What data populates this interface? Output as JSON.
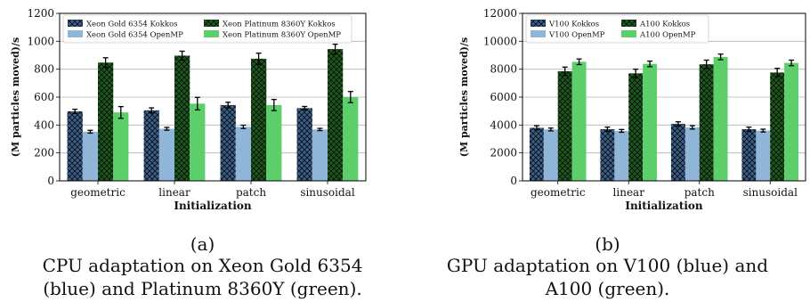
{
  "chart_data": [
    {
      "type": "bar",
      "categories": [
        "geometric",
        "linear",
        "patch",
        "sinusoidal"
      ],
      "xlabel": "Initialization",
      "ylabel": "(M particles moved)/s",
      "ylim": [
        0,
        1200
      ],
      "yticks": [
        0,
        200,
        400,
        600,
        800,
        1000,
        1200
      ],
      "grid": "horizontal",
      "legend_position": "top",
      "series": [
        {
          "name": "Xeon Gold 6354 Kokkos",
          "values": [
            498,
            505,
            543,
            521
          ],
          "errors": [
            15,
            18,
            20,
            12
          ],
          "color": "#3a5f8a",
          "hatch": true
        },
        {
          "name": "Xeon Gold 6354 OpenMP",
          "values": [
            352,
            373,
            387,
            368
          ],
          "errors": [
            10,
            10,
            12,
            8
          ],
          "color": "#8fb6d8",
          "hatch": false
        },
        {
          "name": "Xeon Platinum 8360Y Kokkos",
          "values": [
            847,
            897,
            875,
            944
          ],
          "errors": [
            35,
            32,
            40,
            35
          ],
          "color": "#1c5a1c",
          "hatch": true
        },
        {
          "name": "Xeon Platinum 8360Y OpenMP",
          "values": [
            490,
            553,
            543,
            600
          ],
          "errors": [
            42,
            45,
            40,
            40
          ],
          "color": "#5ccf6a",
          "hatch": false
        }
      ],
      "tag": "(a)",
      "caption_lines": [
        "CPU adaptation on Xeon Gold 6354",
        "(blue) and Platinum 8360Y (green)."
      ]
    },
    {
      "type": "bar",
      "categories": [
        "geometric",
        "linear",
        "patch",
        "sinusoidal"
      ],
      "xlabel": "Initialization",
      "ylabel": "(M particles moved)/s",
      "ylim": [
        0,
        12000
      ],
      "yticks": [
        0,
        2000,
        4000,
        6000,
        8000,
        10000,
        12000
      ],
      "grid": "horizontal",
      "legend_position": "top",
      "series": [
        {
          "name": "V100 Kokkos",
          "values": [
            3800,
            3700,
            4080,
            3700
          ],
          "errors": [
            150,
            150,
            150,
            150
          ],
          "color": "#3a5f8a",
          "hatch": true
        },
        {
          "name": "V100 OpenMP",
          "values": [
            3680,
            3580,
            3830,
            3600
          ],
          "errors": [
            100,
            100,
            120,
            100
          ],
          "color": "#8fb6d8",
          "hatch": false
        },
        {
          "name": "A100 Kokkos",
          "values": [
            7850,
            7700,
            8350,
            7760
          ],
          "errors": [
            300,
            300,
            300,
            300
          ],
          "color": "#1c5a1c",
          "hatch": true
        },
        {
          "name": "A100 OpenMP",
          "values": [
            8530,
            8380,
            8880,
            8450
          ],
          "errors": [
            200,
            200,
            200,
            200
          ],
          "color": "#5ccf6a",
          "hatch": false
        }
      ],
      "tag": "(b)",
      "caption_lines": [
        "GPU adaptation on V100 (blue) and",
        "A100 (green)."
      ]
    }
  ]
}
